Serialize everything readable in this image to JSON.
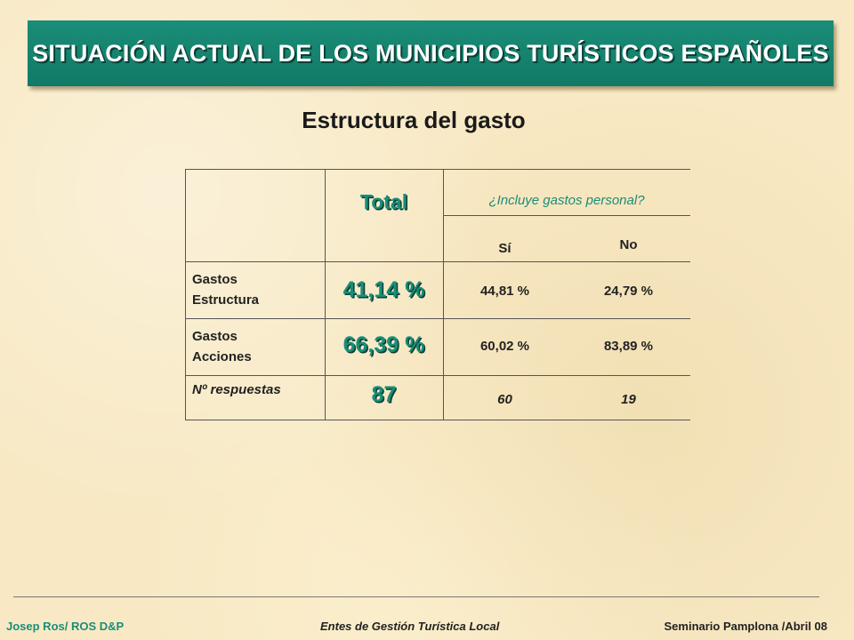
{
  "title": "SITUACIÓN ACTUAL DE LOS MUNICIPIOS TURÍSTICOS ESPAÑOLES",
  "subtitle": "Estructura del gasto",
  "table": {
    "total_header": "Total",
    "group_header": "¿Incluye gastos personal?",
    "col_si": "Sí",
    "col_no": "No",
    "rows": [
      {
        "label_line1": "Gastos",
        "label_line2": "Estructura",
        "total": "41,14 %",
        "si": "44,81 %",
        "no": "24,79 %"
      },
      {
        "label_line1": "Gastos",
        "label_line2": "Acciones",
        "total": "66,39 %",
        "si": "60,02 %",
        "no": "83,89 %"
      },
      {
        "label_line1": "Nº respuestas",
        "label_line2": "",
        "total": "87",
        "si": "60",
        "no": "19"
      }
    ]
  },
  "footer": {
    "left": "Josep Ros/ ROS D&P",
    "center": "Entes de Gestión Turística Local",
    "right": "Seminario Pamplona /Abril 08"
  }
}
